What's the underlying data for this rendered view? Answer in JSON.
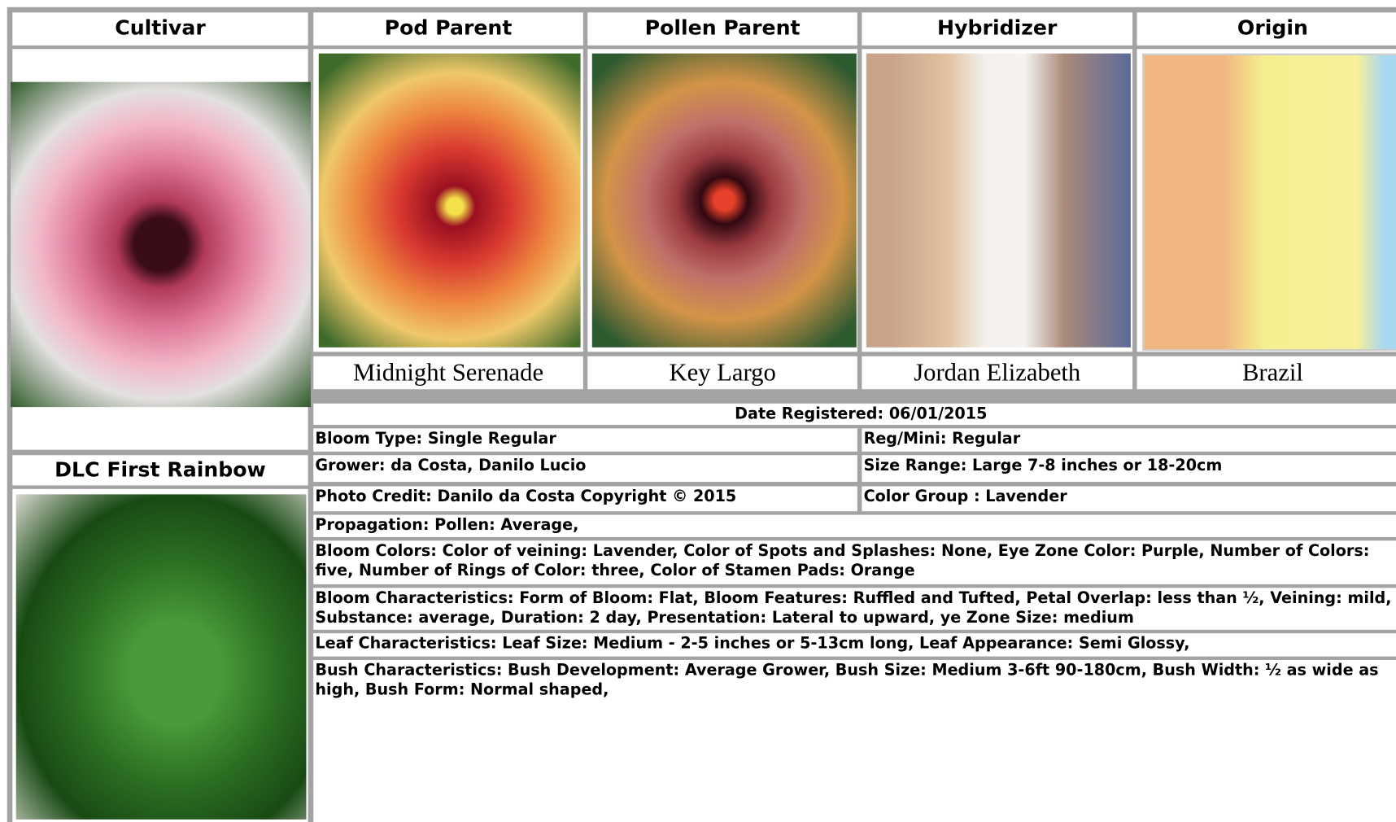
{
  "header": [
    "Cultivar",
    "Pod Parent",
    "Pollen Parent",
    "Hybridizer",
    "Origin"
  ],
  "cultivar": {
    "name": "DLC First Rainbow"
  },
  "captions": [
    "Midnight Serenade",
    "Key Largo",
    "Jordan Elizabeth",
    "Brazil"
  ],
  "details": {
    "date_registered": "Date Registered:  06/01/2015",
    "bloom_type": "Bloom Type: Single Regular",
    "reg_mini": "Reg/Mini: Regular",
    "grower": "Grower: da Costa, Danilo Lucio",
    "size_range": "Size Range: Large 7-8 inches or 18-20cm",
    "photo_credit": "Photo Credit: Danilo da Costa Copyright © 2015",
    "color_group": "Color Group : Lavender",
    "propagation": "Propagation: Pollen: Average,",
    "bloom_colors": "Bloom Colors: Color of veining: Lavender, Color of Spots and Splashes: None, Eye Zone Color: Purple, Number of Colors: five, Number of Rings of Color: three, Color of Stamen Pads: Orange",
    "bloom_characteristics": "Bloom Characteristics: Form of Bloom: Flat, Bloom Features: Ruffled and Tufted, Petal Overlap: less than ½, Veining: mild, Substance: average, Duration: 2 day, Presentation: Lateral to upward, ye Zone Size: medium",
    "leaf_characteristics": "Leaf Characteristics: Leaf Size: Medium - 2-5 inches or 5-13cm long, Leaf Appearance: Semi Glossy,",
    "bush_characteristics": "Bush Characteristics: Bush Development: Average Grower, Bush Size: Medium 3-6ft 90-180cm, Bush Width: ½ as wide as high, Bush Form: Normal shaped,"
  }
}
